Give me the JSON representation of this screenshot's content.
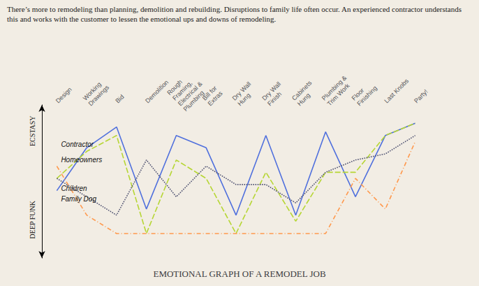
{
  "chart_data": {
    "type": "line",
    "title": "EMOTIONAL GRAPH OF A REMODEL JOB",
    "subtitle": "There’s more to remodeling than planning, demolition and rebuilding. Disruptions to family life often occur. An experienced contractor understands this and works with the customer to lessen the emotional ups and downs of remodeling.",
    "annotations": [
      "ECSTASY",
      "DEEP FUNK"
    ],
    "categories": [
      "Design",
      "Working\nDrawings",
      "Bid",
      "Demolition",
      "Rough\nFraming,\nElectrical &\nPlumbing",
      "Bill for\nExtras",
      "Dry Wall\nHung",
      "Dry Wall\nFinish",
      "Cabinets\nHung",
      "Plumbing &\nTrim Work",
      "Floor\nFinishing",
      "Last Knobs",
      "Party!"
    ],
    "series": [
      {
        "name": "Contractor",
        "line_style": "solid",
        "values": [
          4.0,
          7.5,
          9.2,
          2.5,
          8.5,
          7.5,
          2.0,
          8.5,
          2.0,
          8.8,
          3.5,
          8.5,
          9.5
        ]
      },
      {
        "name": "Homeowners",
        "line_style": "dashed",
        "values": [
          5.0,
          7.2,
          8.5,
          0.5,
          6.5,
          5.0,
          0.5,
          5.5,
          1.5,
          5.5,
          5.5,
          8.5,
          9.5
        ]
      },
      {
        "name": "Children",
        "line_style": "dotted",
        "values": [
          5.0,
          3.5,
          2.0,
          6.5,
          3.5,
          6.0,
          4.5,
          4.5,
          3.0,
          5.5,
          6.5,
          7.0,
          8.5
        ]
      },
      {
        "name": "Family Dog",
        "line_style": "dashdot",
        "values": [
          6.0,
          2.0,
          0.5,
          0.5,
          0.5,
          0.5,
          0.5,
          0.5,
          0.5,
          0.5,
          5.0,
          2.5,
          8.0
        ]
      }
    ],
    "ylim": [
      -1.5,
      11.0
    ],
    "grid": false,
    "tick_labels": "x"
  }
}
